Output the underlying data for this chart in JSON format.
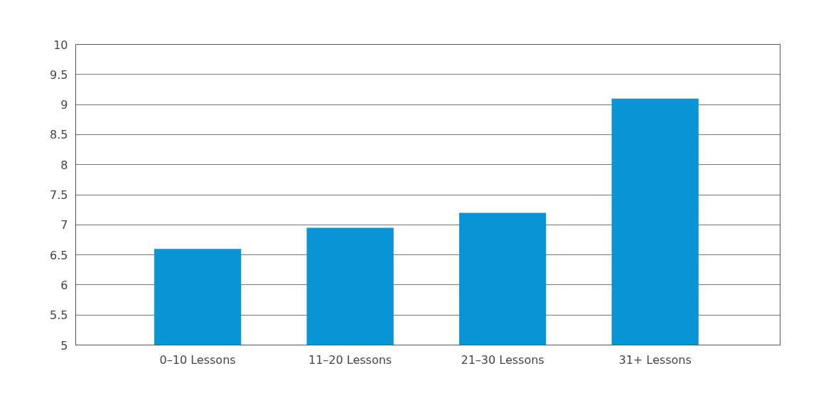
{
  "chart_data": {
    "type": "bar",
    "categories": [
      "0–10 Lessons",
      "11–20 Lessons",
      "21–30 Lessons",
      "31+ Lessons"
    ],
    "values": [
      6.6,
      6.95,
      7.2,
      9.1
    ],
    "color": "#0894d6",
    "ylim": [
      5,
      10
    ],
    "yticks": [
      5,
      5.5,
      6,
      6.5,
      7,
      7.5,
      8,
      8.5,
      9,
      9.5,
      10
    ],
    "grid": "y"
  }
}
